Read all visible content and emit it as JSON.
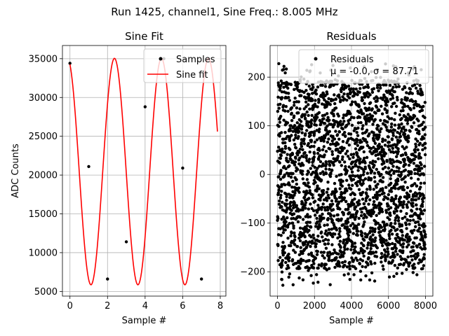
{
  "suptitle": "Run 1425, channel1, Sine Freq.: 8.005 MHz",
  "chart_data": [
    {
      "type": "scatter",
      "title": "Sine Fit",
      "xlabel": "Sample #",
      "ylabel": "ADC Counts",
      "xlim": [
        -0.4,
        8.3
      ],
      "ylim": [
        4400,
        36700
      ],
      "xticks": [
        0,
        2,
        4,
        6,
        8
      ],
      "xtick_labels": [
        "0",
        "2",
        "4",
        "6",
        "8"
      ],
      "yticks": [
        5000,
        10000,
        15000,
        20000,
        25000,
        30000,
        35000
      ],
      "ytick_labels": [
        "5000",
        "10000",
        "15000",
        "20000",
        "25000",
        "30000",
        "35000"
      ],
      "grid": true,
      "legend_position": "top-right",
      "series": [
        {
          "name": "Samples",
          "kind": "points",
          "color": "#000000",
          "x": [
            0,
            1,
            2,
            3,
            4,
            5,
            6,
            7
          ],
          "y": [
            34400,
            21100,
            6600,
            11400,
            28800,
            35000,
            20900,
            6600
          ]
        },
        {
          "name": "Sine fit",
          "kind": "line",
          "color": "#ff0000",
          "model": {
            "offset": 20450,
            "amplitude": 14600,
            "cycles_per_sample": 0.4,
            "phase": 0.33,
            "x_start": 0,
            "x_end": 7.85
          }
        }
      ]
    },
    {
      "type": "scatter",
      "title": "Residuals",
      "xlabel": "Sample #",
      "ylabel": "",
      "xlim": [
        -400,
        8400
      ],
      "ylim": [
        -250,
        265
      ],
      "xticks": [
        0,
        2000,
        4000,
        6000,
        8000
      ],
      "xtick_labels": [
        "0",
        "2000",
        "4000",
        "6000",
        "8000"
      ],
      "yticks": [
        -200,
        -100,
        0,
        100,
        200
      ],
      "ytick_labels": [
        "−200",
        "−100",
        "0",
        "100",
        "200"
      ],
      "grid": true,
      "legend_position": "top-right",
      "series": [
        {
          "name": "Residuals",
          "kind": "points",
          "color": "#000000",
          "n_points": 8000,
          "x_range": [
            0,
            8000
          ],
          "mean": -0.0,
          "std": 87.71
        }
      ],
      "legend_stats_label": "μ = -0.0, σ = 87.71"
    }
  ]
}
